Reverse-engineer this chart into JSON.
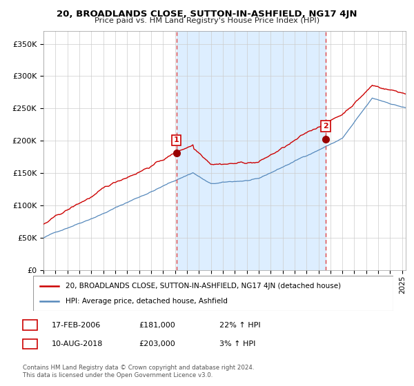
{
  "title": "20, BROADLANDS CLOSE, SUTTON-IN-ASHFIELD, NG17 4JN",
  "subtitle": "Price paid vs. HM Land Registry's House Price Index (HPI)",
  "ylabel_ticks": [
    "£0",
    "£50K",
    "£100K",
    "£150K",
    "£200K",
    "£250K",
    "£300K",
    "£350K"
  ],
  "ytick_vals": [
    0,
    50000,
    100000,
    150000,
    200000,
    250000,
    300000,
    350000
  ],
  "ylim": [
    0,
    370000
  ],
  "xlim_start": 1995.0,
  "xlim_end": 2025.3,
  "red_line_color": "#cc0000",
  "blue_line_color": "#5588bb",
  "shade_color": "#ddeeff",
  "marker1_x": 2006.12,
  "marker1_y": 181000,
  "marker2_x": 2018.61,
  "marker2_y": 203000,
  "marker1_label": "1",
  "marker2_label": "2",
  "vline_color": "#dd4444",
  "vline_style": "--",
  "legend_red": "20, BROADLANDS CLOSE, SUTTON-IN-ASHFIELD, NG17 4JN (detached house)",
  "legend_blue": "HPI: Average price, detached house, Ashfield",
  "table_rows": [
    [
      "1",
      "17-FEB-2006",
      "£181,000",
      "22% ↑ HPI"
    ],
    [
      "2",
      "10-AUG-2018",
      "£203,000",
      "3% ↑ HPI"
    ]
  ],
  "footnote": "Contains HM Land Registry data © Crown copyright and database right 2024.\nThis data is licensed under the Open Government Licence v3.0.",
  "background_color": "#ffffff",
  "plot_bg_color": "#ffffff",
  "grid_color": "#cccccc"
}
